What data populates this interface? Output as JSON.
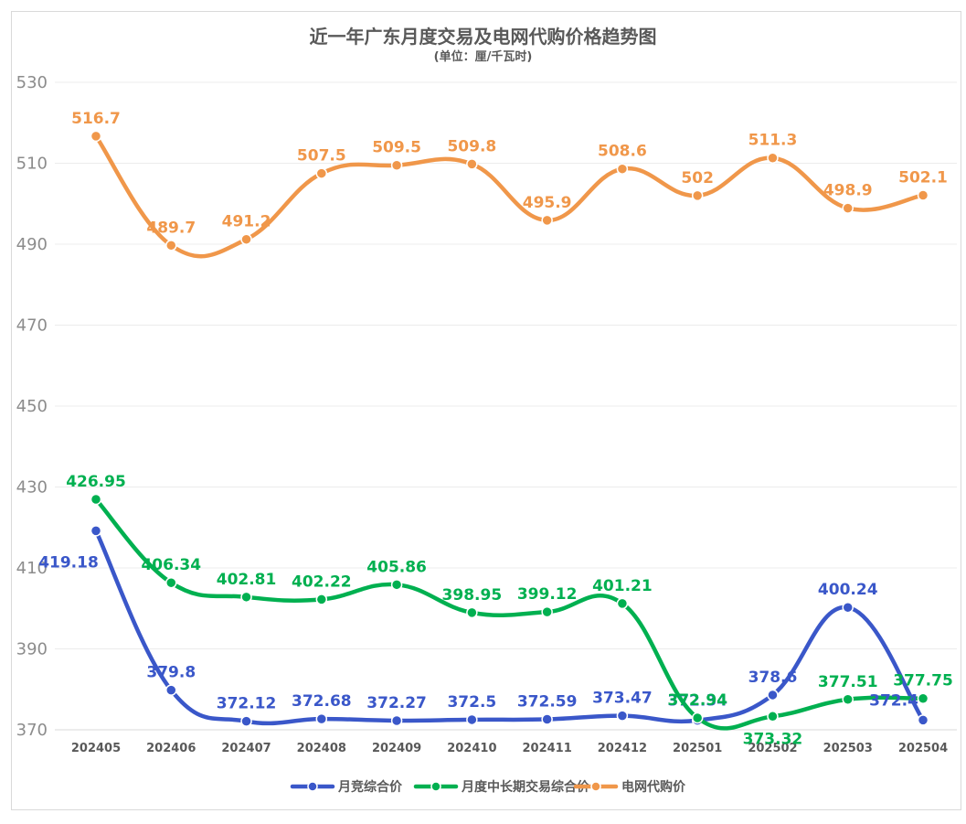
{
  "chart_data": {
    "type": "line",
    "title": "近一年广东月度交易及电网代购价格趋势图",
    "subtitle": "(单位：厘/千瓦时)",
    "xlabel": "",
    "ylabel": "",
    "ylim": [
      370,
      530
    ],
    "yticks": [
      370,
      390,
      410,
      430,
      450,
      470,
      490,
      510,
      530
    ],
    "grid": true,
    "legend_position": "bottom",
    "categories": [
      "202405",
      "202406",
      "202407",
      "202408",
      "202409",
      "202410",
      "202411",
      "202412",
      "202501",
      "202502",
      "202503",
      "202504"
    ],
    "series": [
      {
        "name": "月竞综合价",
        "color": "#3a57c9",
        "values": [
          419.18,
          379.8,
          372.12,
          372.68,
          372.27,
          372.5,
          372.59,
          373.47,
          372.34,
          378.6,
          400.24,
          372.4
        ],
        "labels": [
          "419.18",
          "379.8",
          "372.12",
          "372.68",
          "372.27",
          "372.5",
          "372.59",
          "373.47",
          "372.34",
          "378.6",
          "400.24",
          "372.4"
        ]
      },
      {
        "name": "月度中长期交易综合价",
        "color": "#00b050",
        "values": [
          426.95,
          406.34,
          402.81,
          402.22,
          405.86,
          398.95,
          399.12,
          401.21,
          372.94,
          373.32,
          377.51,
          377.75
        ],
        "labels": [
          "426.95",
          "406.34",
          "402.81",
          "402.22",
          "405.86",
          "398.95",
          "399.12",
          "401.21",
          "372.94",
          "373.32",
          "377.51",
          "377.75"
        ]
      },
      {
        "name": "电网代购价",
        "color": "#f0974a",
        "values": [
          516.7,
          489.7,
          491.2,
          507.5,
          509.5,
          509.8,
          495.9,
          508.6,
          502,
          511.3,
          498.9,
          502.1
        ],
        "labels": [
          "516.7",
          "489.7",
          "491.2",
          "507.5",
          "509.5",
          "509.8",
          "495.9",
          "508.6",
          "502",
          "511.3",
          "498.9",
          "502.1"
        ]
      }
    ]
  }
}
